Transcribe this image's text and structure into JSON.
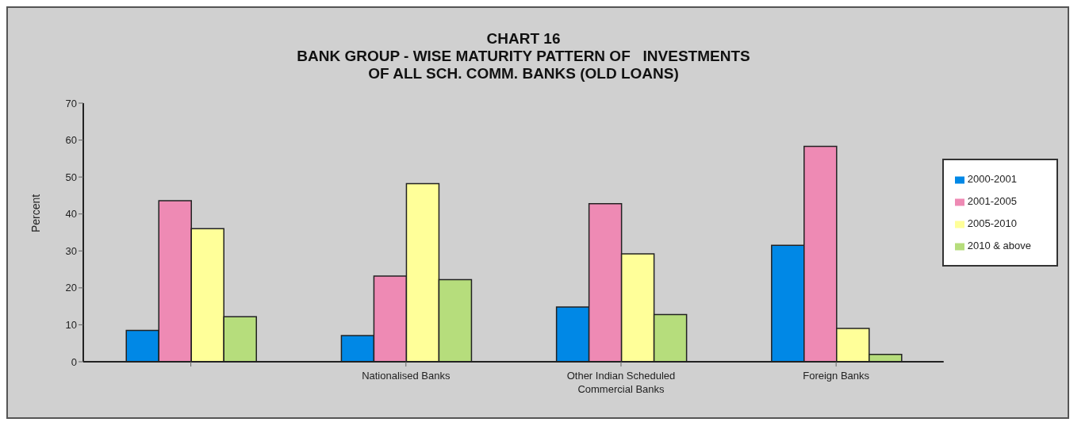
{
  "chart_data": {
    "type": "bar",
    "title": "CHART 16\nBANK GROUP - WISE MATURITY PATTERN OF   INVESTMENTS\nOF ALL SCH. COMM. BANKS (OLD LOANS)",
    "ylabel": "Percent",
    "categories": [
      null,
      "Nationalised Banks",
      "Other Indian Scheduled Commercial Banks",
      "Foreign Banks"
    ],
    "series": [
      {
        "name": "2000-2001",
        "color": "#0088e6",
        "values": [
          8.5,
          7.1,
          14.8,
          31.5
        ]
      },
      {
        "name": "2001-2005",
        "color": "#ee8ab4",
        "values": [
          43.6,
          23.2,
          42.8,
          58.3
        ]
      },
      {
        "name": "2005-2010",
        "color": "#ffff99",
        "values": [
          36,
          48.2,
          29.2,
          9
        ]
      },
      {
        "name": "2010 & above",
        "color": "#b6dd7c",
        "values": [
          12.2,
          22.2,
          12.8,
          2
        ]
      }
    ],
    "ylim": [
      0,
      70
    ],
    "yticks": [
      0,
      10,
      20,
      30,
      40,
      50,
      60,
      70
    ],
    "legend": "right"
  }
}
